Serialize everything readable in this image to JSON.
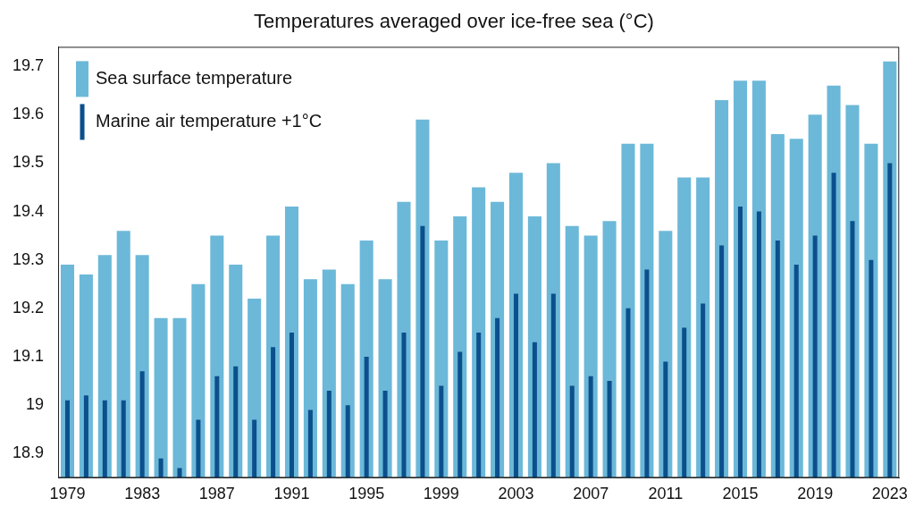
{
  "chart_data": {
    "type": "bar",
    "title": "Temperatures averaged over ice-free sea (°C)",
    "categories": [
      "1979",
      null,
      null,
      null,
      "1983",
      null,
      null,
      null,
      "1987",
      null,
      null,
      null,
      "1991",
      null,
      null,
      null,
      "1995",
      null,
      null,
      null,
      "1999",
      null,
      null,
      null,
      "2003",
      null,
      null,
      null,
      "2007",
      null,
      null,
      null,
      "2011",
      null,
      null,
      null,
      "2015",
      null,
      null,
      null,
      "2019",
      null,
      null,
      null,
      "2023"
    ],
    "series": [
      {
        "name": "Sea surface temperature",
        "color": "#6cb8d8",
        "values": [
          19.29,
          19.27,
          19.31,
          19.36,
          19.31,
          19.18,
          19.18,
          19.25,
          19.35,
          19.29,
          19.22,
          19.35,
          19.41,
          19.26,
          19.28,
          19.25,
          19.34,
          19.26,
          19.42,
          19.59,
          19.34,
          19.39,
          19.45,
          19.42,
          19.48,
          19.39,
          19.5,
          19.37,
          19.35,
          19.38,
          19.54,
          19.54,
          19.36,
          19.47,
          19.47,
          19.63,
          19.67,
          19.67,
          19.56,
          19.55,
          19.6,
          19.66,
          19.62,
          19.54,
          19.71
        ]
      },
      {
        "name": "Marine air temperature +1°C",
        "color": "#0b4f8c",
        "values": [
          19.01,
          19.02,
          19.01,
          19.01,
          19.07,
          18.89,
          18.87,
          18.97,
          19.06,
          19.08,
          18.97,
          19.12,
          19.15,
          18.99,
          19.03,
          19.0,
          19.1,
          19.03,
          19.15,
          19.37,
          19.04,
          19.11,
          19.15,
          19.18,
          19.23,
          19.13,
          19.23,
          19.04,
          19.06,
          19.05,
          19.2,
          19.28,
          19.09,
          19.16,
          19.21,
          19.33,
          19.41,
          19.4,
          19.34,
          19.29,
          19.35,
          19.48,
          19.38,
          19.3,
          19.5
        ]
      }
    ],
    "ylim": [
      18.85,
      19.74
    ],
    "yticks": [
      18.9,
      19,
      19.1,
      19.2,
      19.3,
      19.4,
      19.5,
      19.6,
      19.7
    ],
    "grid": false,
    "legend": "upper left"
  }
}
